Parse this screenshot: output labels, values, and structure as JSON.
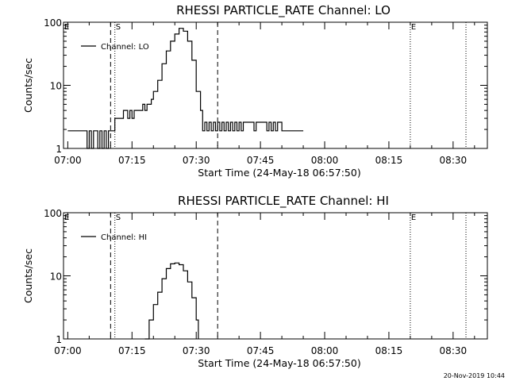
{
  "footer_timestamp": "20-Nov-2019 10:44",
  "chart_data": [
    {
      "type": "line",
      "title": "RHESSI PARTICLE_RATE Channel: LO",
      "xlabel": "Start Time (24-May-18 06:57:50)",
      "ylabel": "Counts/sec",
      "yscale": "log",
      "ylim": [
        1,
        100
      ],
      "xlim_minutes_after_0700": [
        -1,
        98
      ],
      "x_tick_labels": [
        "07:00",
        "07:15",
        "07:30",
        "07:45",
        "08:00",
        "08:15",
        "08:30"
      ],
      "y_tick_labels": [
        "1",
        "10",
        "100"
      ],
      "legend": {
        "position": "top-left",
        "label": "Channel: LO"
      },
      "marker_lines": [
        {
          "label": "E",
          "time": "06:59",
          "style": "dotted"
        },
        {
          "label": "",
          "time": "07:10",
          "style": "dashed"
        },
        {
          "label": "S",
          "time": "07:11",
          "style": "dotted"
        },
        {
          "label": "",
          "time": "07:35",
          "style": "dashed"
        },
        {
          "label": "E",
          "time": "08:20",
          "style": "dotted"
        },
        {
          "label": "",
          "time": "08:33",
          "style": "dotted"
        }
      ],
      "series": [
        {
          "name": "Channel: LO",
          "x": [
            "07:00",
            "07:03",
            "07:04",
            "07:04.5",
            "07:05",
            "07:05.5",
            "07:06",
            "07:06.5",
            "07:07",
            "07:07.5",
            "07:08",
            "07:08.5",
            "07:09",
            "07:09.5",
            "07:10",
            "07:11",
            "07:11.5",
            "07:12",
            "07:12.5",
            "07:13",
            "07:14",
            "07:14.5",
            "07:15",
            "07:15.5",
            "07:16",
            "07:17",
            "07:17.5",
            "07:18",
            "07:18.5",
            "07:19",
            "07:19.5",
            "07:20",
            "07:21",
            "07:22",
            "07:23",
            "07:24",
            "07:25",
            "07:26",
            "07:27",
            "07:28",
            "07:29",
            "07:30",
            "07:31",
            "07:31.5",
            "07:32",
            "07:32.5",
            "07:33",
            "07:33.5",
            "07:34",
            "07:34.5",
            "07:35",
            "07:35.5",
            "07:36",
            "07:36.5",
            "07:37",
            "07:37.5",
            "07:38",
            "07:38.5",
            "07:39",
            "07:39.5",
            "07:40",
            "07:40.5",
            "07:41",
            "07:42",
            "07:43",
            "07:43.5",
            "07:44",
            "07:45",
            "07:46",
            "07:46.5",
            "07:47",
            "07:47.5",
            "07:48",
            "07:48.5",
            "07:49",
            "07:50",
            "07:51",
            "07:55"
          ],
          "y": [
            1.9,
            1.9,
            1.9,
            1.0,
            1.9,
            1.0,
            1.9,
            1.9,
            1.0,
            1.9,
            1.0,
            1.9,
            1.0,
            1.9,
            1.9,
            3.0,
            3.0,
            3.0,
            3.0,
            4.0,
            3.0,
            4.0,
            3.0,
            4.0,
            4.0,
            4.0,
            5.0,
            4.0,
            5.0,
            5.0,
            6.0,
            8.0,
            12.0,
            22.0,
            35.0,
            50.0,
            65.0,
            80.0,
            72.0,
            50.0,
            25.0,
            8.0,
            4.0,
            1.9,
            2.6,
            1.9,
            2.6,
            1.9,
            2.6,
            1.9,
            2.6,
            1.9,
            2.6,
            1.9,
            2.6,
            1.9,
            2.6,
            1.9,
            2.6,
            1.9,
            2.6,
            1.9,
            2.6,
            2.6,
            2.6,
            1.9,
            2.6,
            2.6,
            2.6,
            1.9,
            2.6,
            1.9,
            2.6,
            1.9,
            2.6,
            1.9,
            1.9,
            1.9
          ]
        }
      ]
    },
    {
      "type": "line",
      "title": "RHESSI PARTICLE_RATE Channel: HI",
      "xlabel": "Start Time (24-May-18 06:57:50)",
      "ylabel": "Counts/sec",
      "yscale": "log",
      "ylim": [
        1,
        100
      ],
      "xlim_minutes_after_0700": [
        -1,
        98
      ],
      "x_tick_labels": [
        "07:00",
        "07:15",
        "07:30",
        "07:45",
        "08:00",
        "08:15",
        "08:30"
      ],
      "y_tick_labels": [
        "1",
        "10",
        "100"
      ],
      "legend": {
        "position": "top-left",
        "label": "Channel: HI"
      },
      "marker_lines": [
        {
          "label": "E",
          "time": "06:59",
          "style": "dotted"
        },
        {
          "label": "",
          "time": "07:10",
          "style": "dashed"
        },
        {
          "label": "S",
          "time": "07:11",
          "style": "dotted"
        },
        {
          "label": "",
          "time": "07:35",
          "style": "dashed"
        },
        {
          "label": "E",
          "time": "08:20",
          "style": "dotted"
        },
        {
          "label": "",
          "time": "08:33",
          "style": "dotted"
        }
      ],
      "series": [
        {
          "name": "Channel: HI",
          "x": [
            "07:18",
            "07:19",
            "07:20",
            "07:21",
            "07:22",
            "07:23",
            "07:24",
            "07:25",
            "07:26",
            "07:27",
            "07:28",
            "07:29",
            "07:30",
            "07:30.5"
          ],
          "y": [
            1.0,
            2.0,
            3.5,
            5.5,
            9.0,
            13.0,
            15.5,
            16.0,
            15.0,
            12.0,
            8.0,
            4.5,
            2.0,
            1.0
          ]
        }
      ]
    }
  ]
}
